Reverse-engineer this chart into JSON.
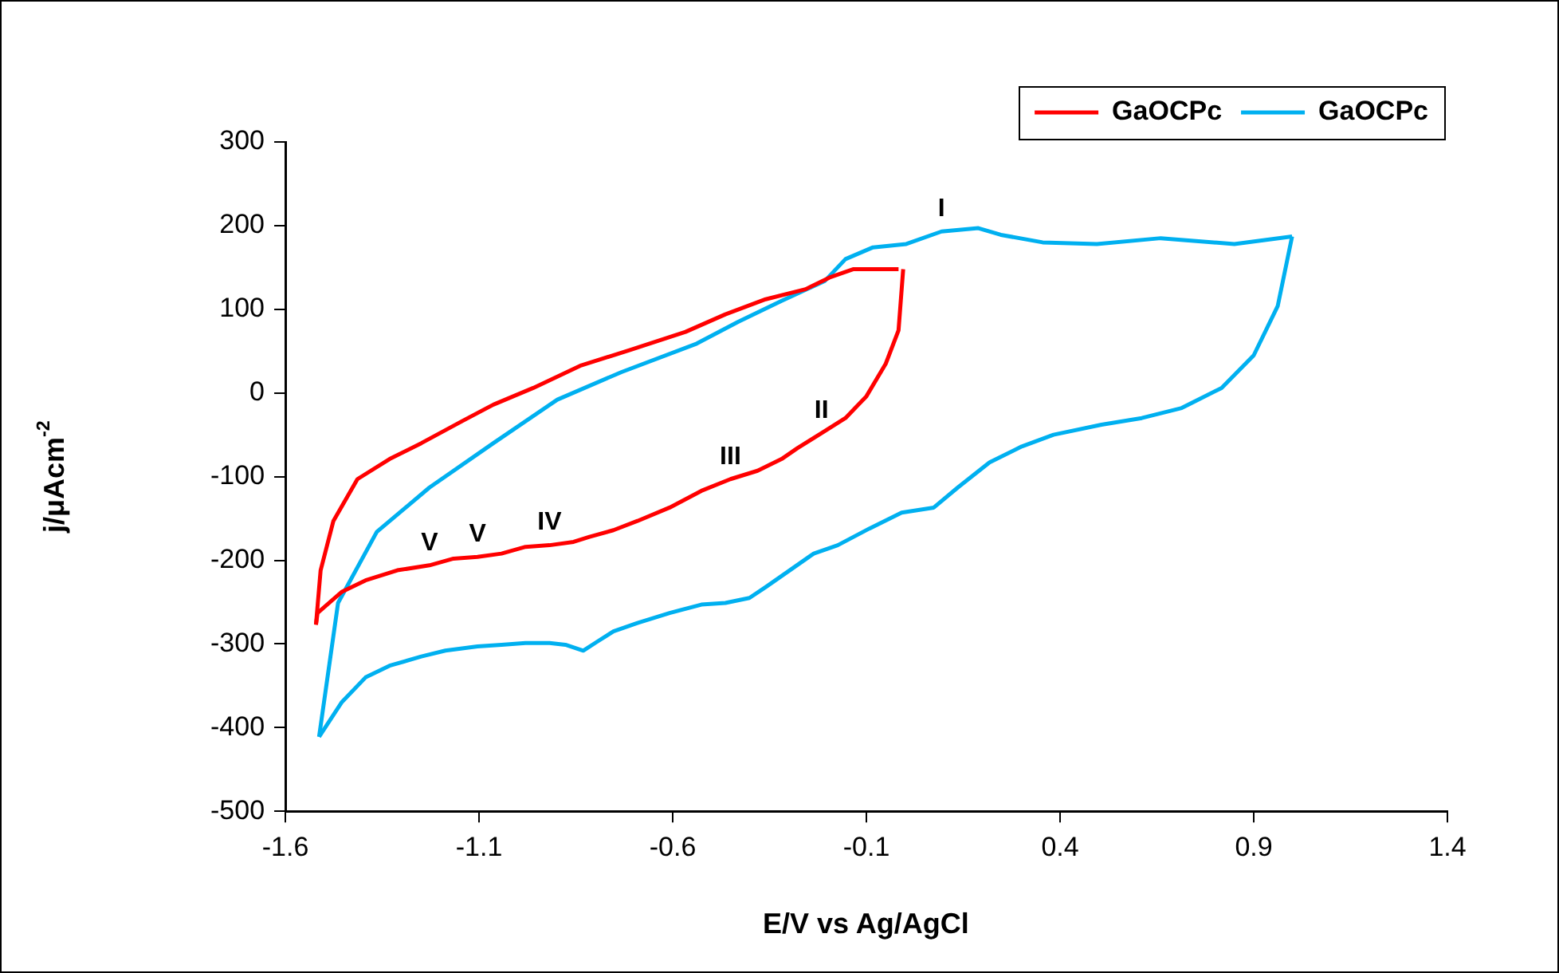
{
  "chart_data": {
    "type": "line",
    "xlabel": "E/V vs Ag/AgCl",
    "ylabel": "j/μAcm$^{-2}$",
    "xlim": [
      -1.6,
      1.4
    ],
    "xticks": [
      -1.6,
      -1.1,
      -0.6,
      -0.1,
      0.4,
      0.9,
      1.4
    ],
    "ylim": [
      -500,
      300
    ],
    "yticks": [
      -500,
      -400,
      -300,
      -200,
      -100,
      0,
      100,
      200,
      300
    ],
    "grid": false,
    "legend": "top right",
    "marker": "none",
    "line_style": "solid",
    "series": [
      {
        "name": "GaOCPc",
        "color": "#ff0000",
        "x": [
          -1.521,
          -1.517,
          -1.455,
          -1.393,
          -1.311,
          -1.228,
          -1.166,
          -1.104,
          -1.042,
          -0.98,
          -0.918,
          -0.856,
          -0.815,
          -0.753,
          -0.691,
          -0.608,
          -0.526,
          -0.451,
          -0.381,
          -0.319,
          -0.278,
          -0.216,
          -0.154,
          -0.1,
          -0.05,
          -0.017,
          -0.005
        ],
        "values": [
          -277,
          -263,
          -238,
          -224,
          -212,
          -206,
          -198,
          -196,
          -192,
          -184,
          -182,
          -178,
          -172,
          -164,
          -153,
          -137,
          -117,
          -103,
          -93,
          -79,
          -66,
          -48,
          -30,
          -4,
          35,
          75,
          148
        ]
      },
      {
        "color": "#ff0000",
        "x": [
          -1.521,
          -1.509,
          -1.476,
          -1.414,
          -1.331,
          -1.249,
          -1.145,
          -1.063,
          -0.96,
          -0.836,
          -0.712,
          -0.567,
          -0.464,
          -0.36,
          -0.257,
          -0.195,
          -0.133,
          -0.079,
          -0.017
        ],
        "values": [
          -277,
          -212,
          -153,
          -103,
          -79,
          -60,
          -34,
          -14,
          6,
          33,
          51,
          73,
          94,
          112,
          124,
          138,
          148,
          148,
          148
        ]
      },
      {
        "name": "GaOCPc",
        "color": "#00b0f0",
        "x": [
          -1.513,
          -1.455,
          -1.393,
          -1.331,
          -1.249,
          -1.187,
          -1.104,
          -1.042,
          -0.98,
          -0.918,
          -0.877,
          -0.831,
          -0.794,
          -0.753,
          -0.691,
          -0.608,
          -0.526,
          -0.464,
          -0.402,
          -0.36,
          -0.298,
          -0.236,
          -0.174,
          -0.092,
          -0.009,
          0.074,
          0.136,
          0.218,
          0.301,
          0.383,
          0.507,
          0.611,
          0.714,
          0.817,
          0.9,
          0.962,
          0.999
        ],
        "values": [
          -411,
          -370,
          -340,
          -326,
          -315,
          -308,
          -303,
          -301,
          -299,
          -299,
          -301,
          -308,
          -297,
          -285,
          -275,
          -263,
          -253,
          -251,
          -245,
          -232,
          -212,
          -192,
          -182,
          -162,
          -143,
          -137,
          -113,
          -83,
          -64,
          -50,
          -38,
          -30,
          -18,
          6,
          45,
          104,
          187
        ]
      },
      {
        "color": "#00b0f0",
        "x": [
          -1.513,
          -1.464,
          -1.364,
          -1.228,
          -1.063,
          -0.898,
          -0.732,
          -0.538,
          -0.431,
          -0.319,
          -0.207,
          -0.154,
          -0.083,
          0.003,
          0.094,
          0.189,
          0.247,
          0.355,
          0.495,
          0.66,
          0.85,
          0.999
        ],
        "values": [
          -411,
          -251,
          -166,
          -113,
          -60,
          -8,
          25,
          59,
          85,
          110,
          134,
          160,
          174,
          178,
          193,
          197,
          189,
          180,
          178,
          185,
          178,
          187
        ]
      }
    ],
    "annotations": [
      {
        "text": "I",
        "x": 0.094,
        "y": 193
      },
      {
        "text": "II",
        "x": -0.216,
        "y": -48
      },
      {
        "text": "III",
        "x": -0.451,
        "y": -103
      },
      {
        "text": "IV",
        "x": -0.918,
        "y": -182
      },
      {
        "text": "V",
        "x": -1.104,
        "y": -196
      },
      {
        "text": "V",
        "x": -1.228,
        "y": -206
      }
    ]
  }
}
